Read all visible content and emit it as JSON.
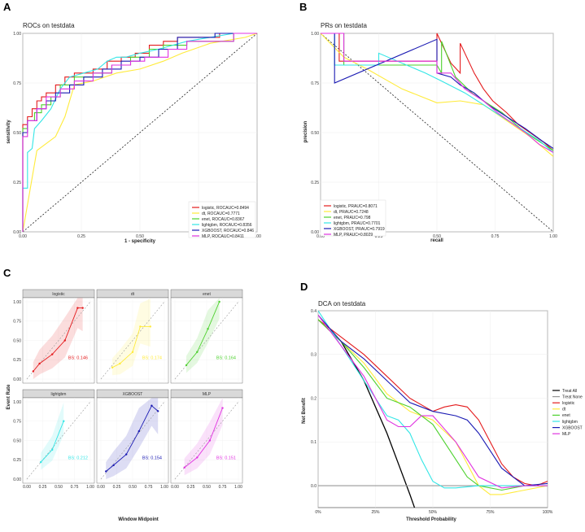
{
  "colors": {
    "logistic": "#e41a1c",
    "dt": "#ffeb3b",
    "enet": "#4dd12e",
    "lightgbm": "#33e6e6",
    "XGBOOST": "#1a1ab3",
    "MLP": "#e033e0",
    "treat_all": "#000000",
    "treat_none": "#aaaaaa"
  },
  "chart_data": [
    {
      "panel": "A",
      "type": "line",
      "title": "ROCs on testdata",
      "xlabel": "1 - specificity",
      "ylabel": "sensitivity",
      "xlim": [
        0,
        1
      ],
      "ylim": [
        0,
        1
      ],
      "x_ticks": [
        "0.00",
        "0.25",
        "0.50",
        "0.75",
        "1.00"
      ],
      "y_ticks": [
        "0.00",
        "0.25",
        "0.50",
        "0.75",
        "1.00"
      ],
      "legend": [
        "logistic, ROCAUC=0.8494",
        "dt, ROCAUC=0.7771",
        "enet, ROCAUC=0.8367",
        "lightgbm, ROCAUC=0.8356",
        "XGBOOST, ROCAUC=0.846",
        "MLP, ROCAUC=0.8411"
      ],
      "series": [
        {
          "name": "logistic",
          "x": [
            0,
            0,
            0.02,
            0.02,
            0.04,
            0.04,
            0.06,
            0.06,
            0.08,
            0.08,
            0.1,
            0.1,
            0.14,
            0.14,
            0.18,
            0.18,
            0.22,
            0.22,
            0.3,
            0.3,
            0.36,
            0.36,
            0.42,
            0.42,
            0.48,
            0.48,
            0.54,
            0.54,
            0.6,
            0.6,
            0.66,
            0.66,
            0.84,
            0.84,
            1
          ],
          "y": [
            0,
            0.54,
            0.54,
            0.58,
            0.58,
            0.62,
            0.62,
            0.66,
            0.66,
            0.68,
            0.68,
            0.7,
            0.7,
            0.74,
            0.74,
            0.78,
            0.78,
            0.8,
            0.8,
            0.82,
            0.82,
            0.86,
            0.86,
            0.88,
            0.88,
            0.9,
            0.9,
            0.94,
            0.94,
            0.96,
            0.96,
            0.98,
            0.98,
            1,
            1
          ]
        },
        {
          "name": "dt",
          "x": [
            0,
            0.06,
            0.14,
            0.18,
            0.22,
            0.3,
            0.4,
            0.5,
            0.6,
            0.68,
            0.8,
            0.95,
            1
          ],
          "y": [
            0,
            0.41,
            0.48,
            0.58,
            0.74,
            0.76,
            0.8,
            0.82,
            0.86,
            0.9,
            0.95,
            0.98,
            1
          ]
        },
        {
          "name": "enet",
          "x": [
            0,
            0,
            0.02,
            0.02,
            0.05,
            0.05,
            0.08,
            0.08,
            0.12,
            0.12,
            0.16,
            0.16,
            0.22,
            0.22,
            0.3,
            0.3,
            0.38,
            0.38,
            0.46,
            0.46,
            0.54,
            0.54,
            0.6,
            0.6,
            0.7,
            0.7,
            0.9,
            0.9,
            1
          ],
          "y": [
            0,
            0.52,
            0.52,
            0.56,
            0.56,
            0.6,
            0.6,
            0.64,
            0.64,
            0.68,
            0.68,
            0.74,
            0.74,
            0.78,
            0.78,
            0.8,
            0.8,
            0.84,
            0.84,
            0.88,
            0.88,
            0.92,
            0.92,
            0.94,
            0.94,
            0.96,
            0.96,
            1,
            1
          ]
        },
        {
          "name": "lightgbm",
          "x": [
            0,
            0,
            0.02,
            0.02,
            0.04,
            0.05,
            0.08,
            0.12,
            0.16,
            0.2,
            0.26,
            0.32,
            0.36,
            0.4,
            0.44,
            0.5,
            0.58,
            0.64,
            0.7,
            0.8,
            0.9,
            1
          ],
          "y": [
            0,
            0.22,
            0.22,
            0.4,
            0.42,
            0.52,
            0.56,
            0.62,
            0.72,
            0.78,
            0.8,
            0.82,
            0.86,
            0.88,
            0.88,
            0.9,
            0.92,
            0.94,
            0.96,
            0.98,
            1,
            1
          ]
        },
        {
          "name": "XGBOOST",
          "x": [
            0,
            0,
            0.02,
            0.02,
            0.06,
            0.06,
            0.1,
            0.1,
            0.14,
            0.14,
            0.2,
            0.2,
            0.26,
            0.26,
            0.34,
            0.34,
            0.42,
            0.42,
            0.5,
            0.5,
            0.58,
            0.58,
            0.66,
            0.66,
            0.82,
            0.82,
            1
          ],
          "y": [
            0,
            0.5,
            0.5,
            0.56,
            0.56,
            0.62,
            0.62,
            0.66,
            0.66,
            0.7,
            0.7,
            0.74,
            0.74,
            0.78,
            0.78,
            0.82,
            0.82,
            0.86,
            0.86,
            0.88,
            0.88,
            0.92,
            0.92,
            0.98,
            0.98,
            1,
            1
          ]
        },
        {
          "name": "MLP",
          "x": [
            0,
            0,
            0.02,
            0.02,
            0.06,
            0.06,
            0.1,
            0.1,
            0.16,
            0.16,
            0.22,
            0.22,
            0.3,
            0.3,
            0.38,
            0.38,
            0.46,
            0.46,
            0.52,
            0.52,
            0.62,
            0.62,
            0.7,
            0.7,
            0.9,
            0.9,
            1
          ],
          "y": [
            0,
            0.48,
            0.48,
            0.56,
            0.56,
            0.62,
            0.62,
            0.68,
            0.68,
            0.72,
            0.72,
            0.76,
            0.76,
            0.8,
            0.8,
            0.84,
            0.84,
            0.86,
            0.86,
            0.88,
            0.88,
            0.92,
            0.92,
            0.96,
            0.96,
            1,
            1
          ]
        }
      ]
    },
    {
      "panel": "B",
      "type": "line",
      "title": "PRs on testdata",
      "xlabel": "recall",
      "ylabel": "precision",
      "xlim": [
        0,
        1
      ],
      "ylim": [
        0,
        1
      ],
      "x_ticks": [
        "0.00",
        "0.25",
        "0.50",
        "0.75",
        "1.00"
      ],
      "y_ticks": [
        "0.00",
        "0.25",
        "0.50",
        "0.75",
        "1.00"
      ],
      "legend": [
        "logistic, PRAUC=0.8071",
        "dt, PRAUC=0.7248",
        "enet, PRAUC=0.798",
        "lightgbm, PRAUC=0.7701",
        "XGBOOST, PRAUC=0.7919",
        "MLP, PRAUC=0.8029"
      ],
      "series": [
        {
          "name": "logistic",
          "x": [
            0,
            0.08,
            0.08,
            0.5,
            0.5,
            0.56,
            0.6,
            0.6,
            0.66,
            0.7,
            0.74,
            0.8,
            0.85,
            0.9,
            0.96,
            1
          ],
          "y": [
            1,
            1,
            0.86,
            0.86,
            1,
            0.85,
            0.8,
            0.95,
            0.8,
            0.72,
            0.66,
            0.6,
            0.54,
            0.5,
            0.45,
            0.41
          ]
        },
        {
          "name": "dt",
          "x": [
            0,
            0.1,
            0.2,
            0.35,
            0.5,
            0.6,
            0.7,
            0.75,
            0.8,
            0.9,
            1
          ],
          "y": [
            1,
            0.88,
            0.82,
            0.72,
            0.65,
            0.66,
            0.64,
            0.6,
            0.56,
            0.48,
            0.38
          ]
        },
        {
          "name": "enet",
          "x": [
            0,
            0.1,
            0.1,
            0.5,
            0.52,
            0.52,
            0.58,
            0.65,
            0.7,
            0.78,
            0.86,
            0.92,
            1
          ],
          "y": [
            1,
            1,
            0.84,
            0.84,
            0.8,
            0.96,
            0.78,
            0.7,
            0.66,
            0.6,
            0.52,
            0.47,
            0.41
          ]
        },
        {
          "name": "lightgbm",
          "x": [
            0,
            0.06,
            0.06,
            0.25,
            0.25,
            0.45,
            0.52,
            0.62,
            0.7,
            0.78,
            0.86,
            0.94,
            1
          ],
          "y": [
            1,
            1,
            0.84,
            0.84,
            0.9,
            0.8,
            0.76,
            0.7,
            0.64,
            0.58,
            0.52,
            0.46,
            0.4
          ]
        },
        {
          "name": "XGBOOST",
          "x": [
            0,
            0.06,
            0.06,
            0.5,
            0.5,
            0.56,
            0.6,
            0.66,
            0.72,
            0.8,
            0.88,
            0.95,
            1
          ],
          "y": [
            1,
            1,
            0.75,
            0.97,
            0.8,
            0.78,
            0.74,
            0.7,
            0.64,
            0.58,
            0.52,
            0.46,
            0.42
          ]
        },
        {
          "name": "MLP",
          "x": [
            0,
            0.1,
            0.1,
            0.5,
            0.5,
            0.56,
            0.62,
            0.7,
            0.76,
            0.82,
            0.88,
            0.94,
            1
          ],
          "y": [
            1,
            1,
            0.86,
            0.86,
            0.8,
            0.8,
            0.72,
            0.66,
            0.6,
            0.55,
            0.5,
            0.44,
            0.4
          ]
        }
      ]
    },
    {
      "panel": "C",
      "type": "line",
      "title": "",
      "xlabel": "Window Midpoint",
      "ylabel": "Event Rate",
      "xlim": [
        0,
        1
      ],
      "ylim": [
        0,
        1
      ],
      "x_ticks": [
        "0.00",
        "0.25",
        "0.50",
        "0.75",
        "1.00"
      ],
      "y_ticks": [
        "0.00",
        "0.25",
        "0.50",
        "0.75",
        "1.00"
      ],
      "facets": [
        {
          "name": "logistic",
          "bs": "BS: 0.146",
          "x": [
            0.1,
            0.2,
            0.4,
            0.6,
            0.8,
            0.88
          ],
          "y": [
            0.1,
            0.2,
            0.32,
            0.5,
            0.92,
            0.92
          ]
        },
        {
          "name": "dt",
          "bs": "BS: 0.174",
          "x": [
            0.18,
            0.3,
            0.5,
            0.62,
            0.78
          ],
          "y": [
            0.15,
            0.2,
            0.35,
            0.68,
            0.68
          ]
        },
        {
          "name": "enet",
          "bs": "BS: 0.164",
          "x": [
            0.18,
            0.35,
            0.52,
            0.7
          ],
          "y": [
            0.18,
            0.35,
            0.65,
            1.0
          ]
        },
        {
          "name": "lightgbm",
          "bs": "BS: 0.212",
          "x": [
            0.22,
            0.4,
            0.58
          ],
          "y": [
            0.22,
            0.38,
            0.75
          ]
        },
        {
          "name": "XGBOOST",
          "bs": "BS: 0.154",
          "x": [
            0.08,
            0.2,
            0.4,
            0.6,
            0.8,
            0.9
          ],
          "y": [
            0.1,
            0.18,
            0.32,
            0.62,
            0.95,
            0.88
          ]
        },
        {
          "name": "MLP",
          "bs": "BS: 0.151",
          "x": [
            0.15,
            0.35,
            0.55,
            0.75
          ],
          "y": [
            0.15,
            0.28,
            0.5,
            0.92
          ]
        }
      ]
    },
    {
      "panel": "D",
      "type": "line",
      "title": "DCA on testdata",
      "xlabel": "Threshold Probability",
      "ylabel": "Net Benefit",
      "xlim": [
        0,
        1
      ],
      "ylim": [
        -0.05,
        0.4
      ],
      "x_ticks": [
        "0%",
        "25%",
        "50%",
        "75%",
        "100%"
      ],
      "y_ticks": [
        "0.0",
        "0.1",
        "0.2",
        "0.3",
        "0.4"
      ],
      "legend": [
        "Treat All",
        "Treat None",
        "logistic",
        "dt",
        "enet",
        "lightgbm",
        "XGBOOST",
        "MLP"
      ],
      "series": [
        {
          "name": "Treat All",
          "x": [
            0,
            0.1,
            0.2,
            0.3,
            0.35,
            0.4,
            0.44
          ],
          "y": [
            0.38,
            0.33,
            0.24,
            0.12,
            0.05,
            -0.02,
            -0.08
          ]
        },
        {
          "name": "Treat None",
          "x": [
            0,
            1
          ],
          "y": [
            0,
            0
          ]
        },
        {
          "name": "logistic",
          "x": [
            0,
            0.1,
            0.2,
            0.3,
            0.4,
            0.5,
            0.55,
            0.6,
            0.65,
            0.7,
            0.75,
            0.8,
            0.85,
            0.9,
            0.95,
            1
          ],
          "y": [
            0.38,
            0.34,
            0.3,
            0.25,
            0.2,
            0.17,
            0.18,
            0.185,
            0.18,
            0.15,
            0.1,
            0.05,
            0.02,
            0.005,
            0,
            0.01
          ]
        },
        {
          "name": "dt",
          "x": [
            0,
            0.1,
            0.2,
            0.3,
            0.4,
            0.5,
            0.6,
            0.65,
            0.7,
            0.75,
            0.8,
            0.9,
            1
          ],
          "y": [
            0.38,
            0.33,
            0.28,
            0.21,
            0.17,
            0.15,
            0.1,
            0.05,
            0.0,
            -0.02,
            -0.02,
            -0.01,
            0.0
          ]
        },
        {
          "name": "enet",
          "x": [
            0,
            0.1,
            0.2,
            0.3,
            0.4,
            0.5,
            0.55,
            0.6,
            0.65,
            0.7,
            0.8,
            0.9,
            1
          ],
          "y": [
            0.38,
            0.33,
            0.27,
            0.2,
            0.18,
            0.14,
            0.1,
            0.06,
            0.02,
            0.0,
            -0.01,
            0.0,
            0.0
          ]
        },
        {
          "name": "lightgbm",
          "x": [
            0,
            0.1,
            0.2,
            0.3,
            0.35,
            0.4,
            0.45,
            0.5,
            0.55,
            0.6,
            0.7,
            0.8,
            0.9,
            1
          ],
          "y": [
            0.4,
            0.32,
            0.24,
            0.16,
            0.15,
            0.12,
            0.06,
            0.01,
            -0.005,
            -0.005,
            0.0,
            0.0,
            0.0,
            0.0
          ]
        },
        {
          "name": "XGBOOST",
          "x": [
            0,
            0.1,
            0.2,
            0.3,
            0.4,
            0.5,
            0.6,
            0.65,
            0.7,
            0.75,
            0.8,
            0.9,
            1
          ],
          "y": [
            0.39,
            0.33,
            0.29,
            0.24,
            0.19,
            0.17,
            0.16,
            0.15,
            0.12,
            0.08,
            0.04,
            0.0,
            0.005
          ]
        },
        {
          "name": "MLP",
          "x": [
            0,
            0.1,
            0.2,
            0.3,
            0.35,
            0.4,
            0.45,
            0.5,
            0.55,
            0.6,
            0.65,
            0.7,
            0.8,
            0.9,
            1
          ],
          "y": [
            0.39,
            0.32,
            0.25,
            0.15,
            0.135,
            0.135,
            0.16,
            0.16,
            0.13,
            0.1,
            0.06,
            0.02,
            -0.005,
            0.0,
            0.0
          ]
        }
      ]
    }
  ]
}
